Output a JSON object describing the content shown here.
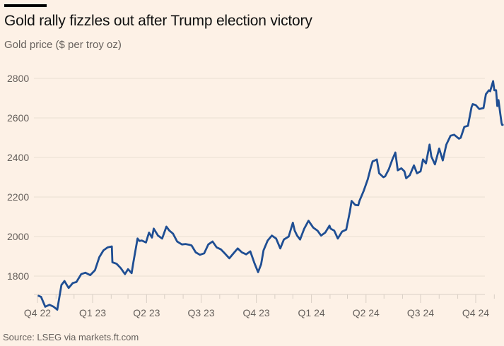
{
  "header": {
    "title": "Gold rally fizzles out after Trump election victory",
    "subtitle": "Gold price ($ per troy oz)"
  },
  "footer": {
    "source": "Source: LSEG via markets.ft.com"
  },
  "colors": {
    "background": "#fdf1e6",
    "line": "#1f4e93",
    "grid": "#e9ded3",
    "axis": "#d9cfc5",
    "text": "#66605c"
  },
  "chart_data": {
    "type": "line",
    "title": "Gold rally fizzles out after Trump election victory",
    "subtitle": "Gold price ($ per troy oz)",
    "xlabel": "",
    "ylabel": "",
    "ylim": [
      1707,
      2830
    ],
    "yticks": [
      1800,
      2000,
      2200,
      2400,
      2600,
      2800
    ],
    "grid": true,
    "xticks": [
      {
        "label": "Q4 22",
        "date": "2022-10-01"
      },
      {
        "label": "Q1 23",
        "date": "2023-01-01"
      },
      {
        "label": "Q2 23",
        "date": "2023-04-01"
      },
      {
        "label": "Q3 23",
        "date": "2023-07-01"
      },
      {
        "label": "Q4 23",
        "date": "2023-10-01"
      },
      {
        "label": "Q1 24",
        "date": "2024-01-01"
      },
      {
        "label": "Q2 24",
        "date": "2024-04-01"
      },
      {
        "label": "Q3 24",
        "date": "2024-07-01"
      },
      {
        "label": "Q4 24",
        "date": "2024-10-01"
      }
    ],
    "series": [
      {
        "name": "Gold price",
        "points": [
          [
            "2022-10-03",
            1700
          ],
          [
            "2022-10-07",
            1695
          ],
          [
            "2022-10-14",
            1645
          ],
          [
            "2022-10-21",
            1655
          ],
          [
            "2022-10-28",
            1645
          ],
          [
            "2022-11-03",
            1630
          ],
          [
            "2022-11-10",
            1755
          ],
          [
            "2022-11-15",
            1775
          ],
          [
            "2022-11-22",
            1740
          ],
          [
            "2022-11-29",
            1765
          ],
          [
            "2022-12-05",
            1770
          ],
          [
            "2022-12-13",
            1810
          ],
          [
            "2022-12-20",
            1817
          ],
          [
            "2022-12-28",
            1805
          ],
          [
            "2023-01-05",
            1830
          ],
          [
            "2023-01-12",
            1895
          ],
          [
            "2023-01-19",
            1930
          ],
          [
            "2023-01-26",
            1945
          ],
          [
            "2023-02-02",
            1950
          ],
          [
            "2023-02-03",
            1870
          ],
          [
            "2023-02-10",
            1862
          ],
          [
            "2023-02-17",
            1840
          ],
          [
            "2023-02-24",
            1810
          ],
          [
            "2023-03-01",
            1835
          ],
          [
            "2023-03-07",
            1815
          ],
          [
            "2023-03-10",
            1870
          ],
          [
            "2023-03-17",
            1990
          ],
          [
            "2023-03-20",
            1978
          ],
          [
            "2023-03-24",
            1980
          ],
          [
            "2023-03-31",
            1970
          ],
          [
            "2023-04-05",
            2020
          ],
          [
            "2023-04-10",
            1995
          ],
          [
            "2023-04-13",
            2040
          ],
          [
            "2023-04-20",
            2005
          ],
          [
            "2023-04-27",
            1990
          ],
          [
            "2023-05-04",
            2050
          ],
          [
            "2023-05-09",
            2030
          ],
          [
            "2023-05-15",
            2015
          ],
          [
            "2023-05-22",
            1975
          ],
          [
            "2023-05-30",
            1960
          ],
          [
            "2023-06-05",
            1962
          ],
          [
            "2023-06-12",
            1958
          ],
          [
            "2023-06-15",
            1955
          ],
          [
            "2023-06-22",
            1920
          ],
          [
            "2023-06-29",
            1908
          ],
          [
            "2023-07-06",
            1915
          ],
          [
            "2023-07-13",
            1960
          ],
          [
            "2023-07-20",
            1975
          ],
          [
            "2023-07-27",
            1945
          ],
          [
            "2023-08-03",
            1935
          ],
          [
            "2023-08-10",
            1913
          ],
          [
            "2023-08-17",
            1890
          ],
          [
            "2023-08-24",
            1915
          ],
          [
            "2023-08-31",
            1940
          ],
          [
            "2023-09-07",
            1920
          ],
          [
            "2023-09-14",
            1910
          ],
          [
            "2023-09-21",
            1925
          ],
          [
            "2023-09-28",
            1865
          ],
          [
            "2023-10-04",
            1820
          ],
          [
            "2023-10-09",
            1860
          ],
          [
            "2023-10-13",
            1930
          ],
          [
            "2023-10-20",
            1980
          ],
          [
            "2023-10-27",
            2005
          ],
          [
            "2023-11-03",
            1990
          ],
          [
            "2023-11-10",
            1940
          ],
          [
            "2023-11-16",
            1985
          ],
          [
            "2023-11-24",
            2000
          ],
          [
            "2023-12-01",
            2070
          ],
          [
            "2023-12-04",
            2030
          ],
          [
            "2023-12-08",
            2005
          ],
          [
            "2023-12-13",
            1985
          ],
          [
            "2023-12-20",
            2040
          ],
          [
            "2023-12-27",
            2080
          ],
          [
            "2024-01-04",
            2045
          ],
          [
            "2024-01-11",
            2030
          ],
          [
            "2024-01-17",
            2005
          ],
          [
            "2024-01-24",
            2020
          ],
          [
            "2024-01-31",
            2055
          ],
          [
            "2024-02-02",
            2040
          ],
          [
            "2024-02-08",
            2030
          ],
          [
            "2024-02-14",
            1990
          ],
          [
            "2024-02-21",
            2025
          ],
          [
            "2024-02-28",
            2035
          ],
          [
            "2024-03-05",
            2125
          ],
          [
            "2024-03-08",
            2180
          ],
          [
            "2024-03-14",
            2160
          ],
          [
            "2024-03-19",
            2158
          ],
          [
            "2024-03-21",
            2180
          ],
          [
            "2024-03-28",
            2230
          ],
          [
            "2024-04-04",
            2290
          ],
          [
            "2024-04-09",
            2350
          ],
          [
            "2024-04-12",
            2380
          ],
          [
            "2024-04-16",
            2385
          ],
          [
            "2024-04-19",
            2390
          ],
          [
            "2024-04-23",
            2320
          ],
          [
            "2024-04-30",
            2300
          ],
          [
            "2024-05-03",
            2305
          ],
          [
            "2024-05-09",
            2340
          ],
          [
            "2024-05-15",
            2390
          ],
          [
            "2024-05-20",
            2425
          ],
          [
            "2024-05-24",
            2335
          ],
          [
            "2024-05-30",
            2345
          ],
          [
            "2024-06-04",
            2330
          ],
          [
            "2024-06-07",
            2295
          ],
          [
            "2024-06-13",
            2310
          ],
          [
            "2024-06-20",
            2360
          ],
          [
            "2024-06-25",
            2320
          ],
          [
            "2024-07-01",
            2330
          ],
          [
            "2024-07-05",
            2390
          ],
          [
            "2024-07-10",
            2370
          ],
          [
            "2024-07-16",
            2465
          ],
          [
            "2024-07-19",
            2405
          ],
          [
            "2024-07-25",
            2365
          ],
          [
            "2024-08-01",
            2445
          ],
          [
            "2024-08-07",
            2385
          ],
          [
            "2024-08-13",
            2465
          ],
          [
            "2024-08-20",
            2510
          ],
          [
            "2024-08-26",
            2515
          ],
          [
            "2024-09-03",
            2495
          ],
          [
            "2024-09-06",
            2500
          ],
          [
            "2024-09-12",
            2555
          ],
          [
            "2024-09-18",
            2560
          ],
          [
            "2024-09-24",
            2655
          ],
          [
            "2024-09-26",
            2670
          ],
          [
            "2024-10-01",
            2665
          ],
          [
            "2024-10-07",
            2645
          ],
          [
            "2024-10-14",
            2650
          ],
          [
            "2024-10-18",
            2720
          ],
          [
            "2024-10-23",
            2740
          ],
          [
            "2024-10-25",
            2735
          ],
          [
            "2024-10-30",
            2786
          ],
          [
            "2024-11-01",
            2740
          ],
          [
            "2024-11-04",
            2740
          ],
          [
            "2024-11-06",
            2660
          ],
          [
            "2024-11-08",
            2690
          ],
          [
            "2024-11-11",
            2620
          ],
          [
            "2024-11-13",
            2575
          ],
          [
            "2024-11-14",
            2565
          ],
          [
            "2024-11-15",
            2565
          ]
        ]
      }
    ],
    "source": "Source: LSEG via markets.ft.com"
  }
}
